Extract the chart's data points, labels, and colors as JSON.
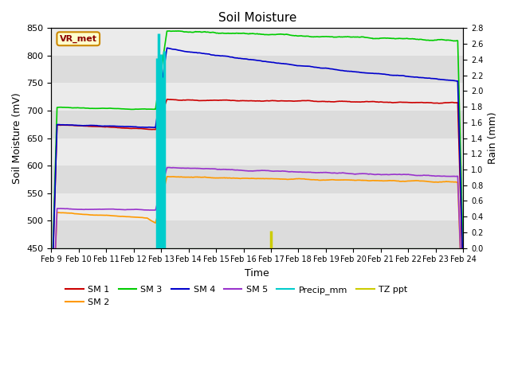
{
  "title": "Soil Moisture",
  "xlabel": "Time",
  "ylabel_left": "Soil Moisture (mV)",
  "ylabel_right": "Rain (mm)",
  "ylim_left": [
    450,
    850
  ],
  "ylim_right": [
    0.0,
    2.8
  ],
  "background_color": "#dcdcdc",
  "fig_background": "#ffffff",
  "station_label": "VR_met",
  "x_tick_labels": [
    "Feb 9",
    "Feb 10",
    "Feb 11",
    "Feb 12",
    "Feb 13",
    "Feb 14",
    "Feb 15",
    "Feb 16",
    "Feb 17",
    "Feb 18",
    "Feb 19",
    "Feb 20",
    "Feb 21",
    "Feb 22",
    "Feb 23",
    "Feb 24"
  ],
  "colors": {
    "SM1": "#cc0000",
    "SM2": "#ff9900",
    "SM3": "#00cc00",
    "SM4": "#0000cc",
    "SM5": "#9933cc",
    "Precip_mm": "#00cccc",
    "TZ_ppt": "#cccc00"
  },
  "band_colors": [
    "#dcdcdc",
    "#ebebeb"
  ]
}
